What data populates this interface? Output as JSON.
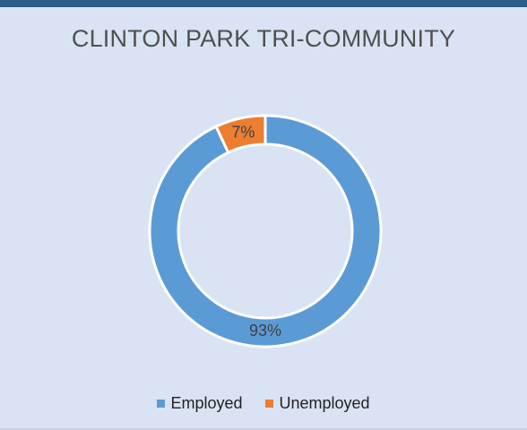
{
  "chart_data": {
    "type": "pie",
    "title": "CLINTON PARK TRI-COMMUNITY",
    "categories": [
      "Employed",
      "Unemployed"
    ],
    "values": [
      93,
      7
    ],
    "data_labels": [
      "93%",
      "7%"
    ],
    "colors": [
      "#5b9bd5",
      "#ed7d31"
    ],
    "legend_position": "bottom"
  },
  "colors": {
    "background": "#dae3f3",
    "header_bar": "#2e5a8c",
    "slice_border": "#ffffff",
    "label_text": "#404040"
  }
}
